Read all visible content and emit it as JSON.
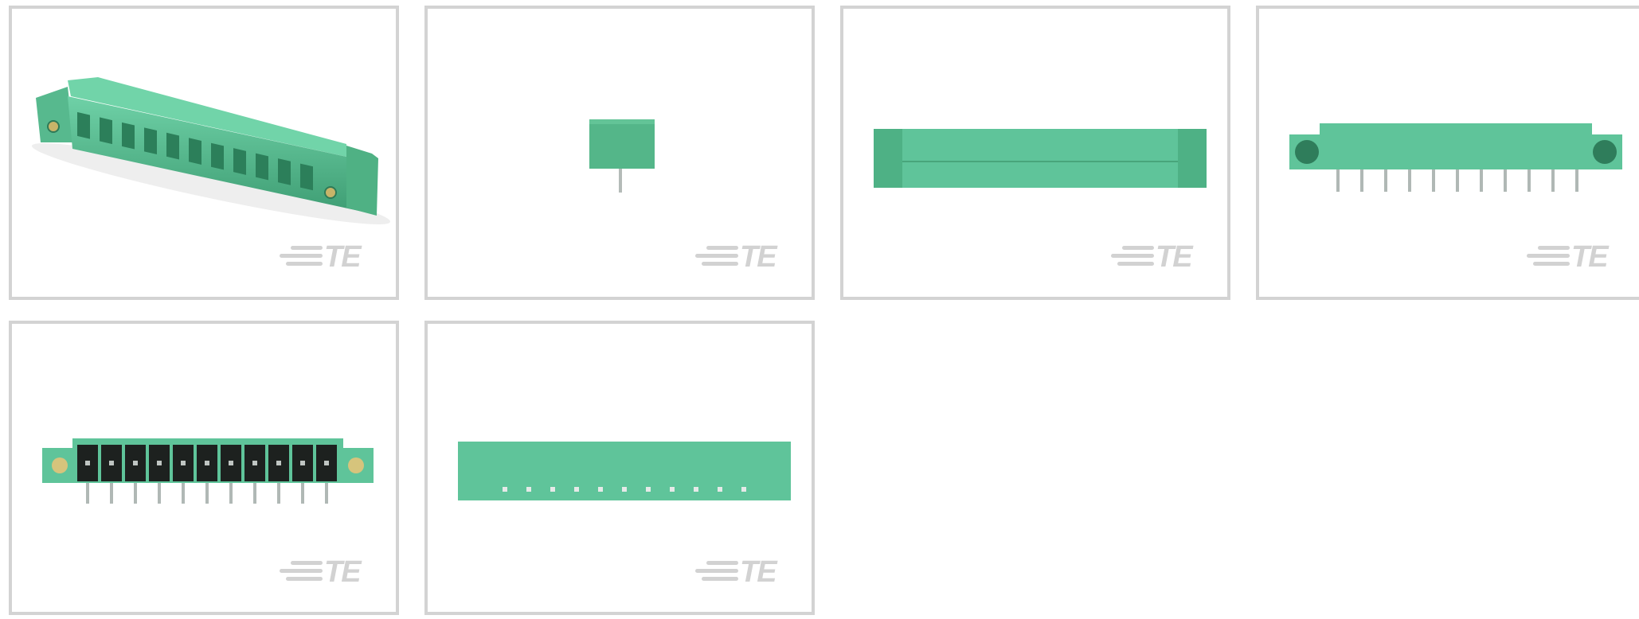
{
  "gallery": {
    "watermark": "TE",
    "colors": {
      "tile_border": "#d3d3d3",
      "connector_green": "#5fc39a",
      "connector_dark": "#3f9c74",
      "pin_metal": "#9ea7a3",
      "terminal_black": "#1d211f",
      "screw_brass": "#d8c77d"
    },
    "thumbnails": [
      {
        "view": "isometric"
      },
      {
        "view": "side"
      },
      {
        "view": "top"
      },
      {
        "view": "rear"
      },
      {
        "view": "front"
      },
      {
        "view": "bottom"
      }
    ]
  }
}
